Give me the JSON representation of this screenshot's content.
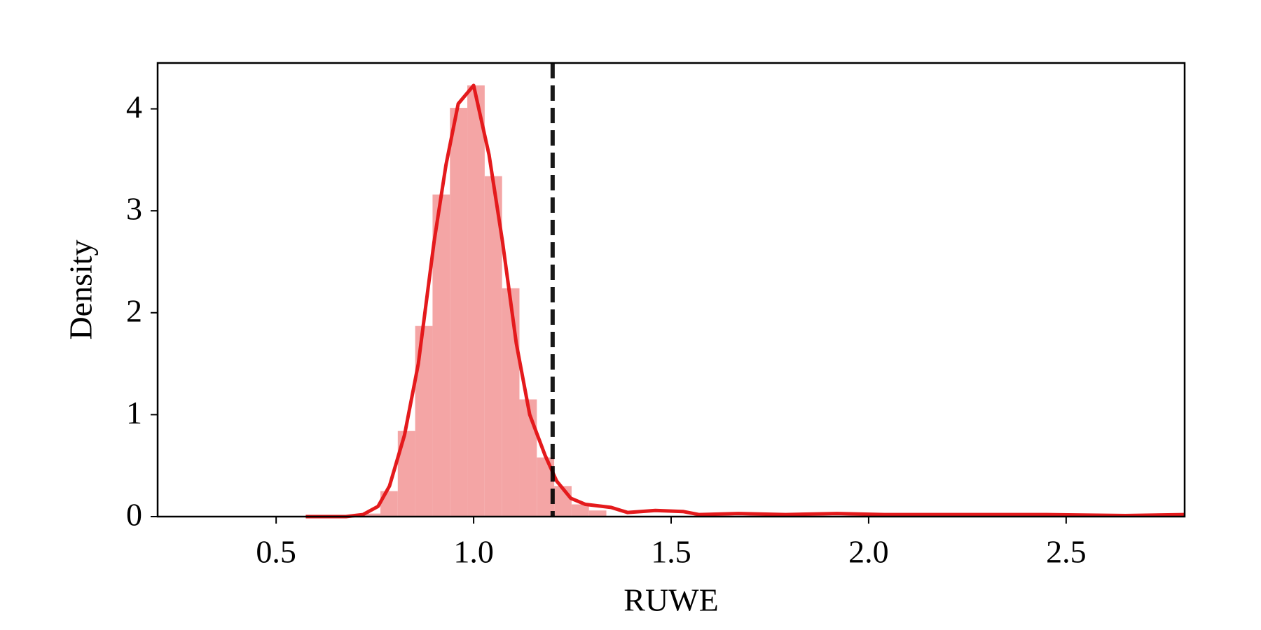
{
  "chart_data": {
    "type": "histogram",
    "xlabel": "RUWE",
    "ylabel": "Density",
    "bins": [
      0.72,
      0.764,
      0.808,
      0.852,
      0.896,
      0.94,
      0.984,
      1.028,
      1.072,
      1.116,
      1.16,
      1.204,
      1.248,
      1.292,
      1.336
    ],
    "counts": [
      0.03,
      0.25,
      0.84,
      1.87,
      3.16,
      4.01,
      4.23,
      3.34,
      2.24,
      1.15,
      0.58,
      0.3,
      0.12,
      0.06
    ],
    "color": "#f4a5a5",
    "kde": {
      "color": "#e41a1c",
      "x": [
        0.575,
        0.677,
        0.72,
        0.758,
        0.787,
        0.825,
        0.86,
        0.9,
        0.93,
        0.961,
        1.0,
        1.039,
        1.073,
        1.108,
        1.142,
        1.181,
        1.21,
        1.246,
        1.283,
        1.348,
        1.39,
        1.46,
        1.53,
        1.57,
        1.67,
        1.79,
        1.92,
        2.04,
        2.24,
        2.45,
        2.65,
        2.8
      ],
      "y": [
        0.0,
        0.0,
        0.02,
        0.1,
        0.3,
        0.8,
        1.5,
        2.7,
        3.45,
        4.05,
        4.23,
        3.55,
        2.7,
        1.7,
        1.0,
        0.6,
        0.35,
        0.18,
        0.12,
        0.09,
        0.04,
        0.06,
        0.05,
        0.02,
        0.03,
        0.02,
        0.03,
        0.02,
        0.02,
        0.02,
        0.01,
        0.02
      ]
    },
    "vline": 1.2,
    "vline_color": "#000000",
    "xlim": [
      0.2,
      2.8
    ],
    "ylim": [
      0,
      4.45
    ],
    "xticks": [
      0.5,
      {
        "value": 1,
        "label": "1.0"
      },
      1.5,
      {
        "value": 2,
        "label": "2.0"
      },
      2.5
    ],
    "yticks": [
      0,
      1,
      2,
      3,
      4
    ]
  }
}
